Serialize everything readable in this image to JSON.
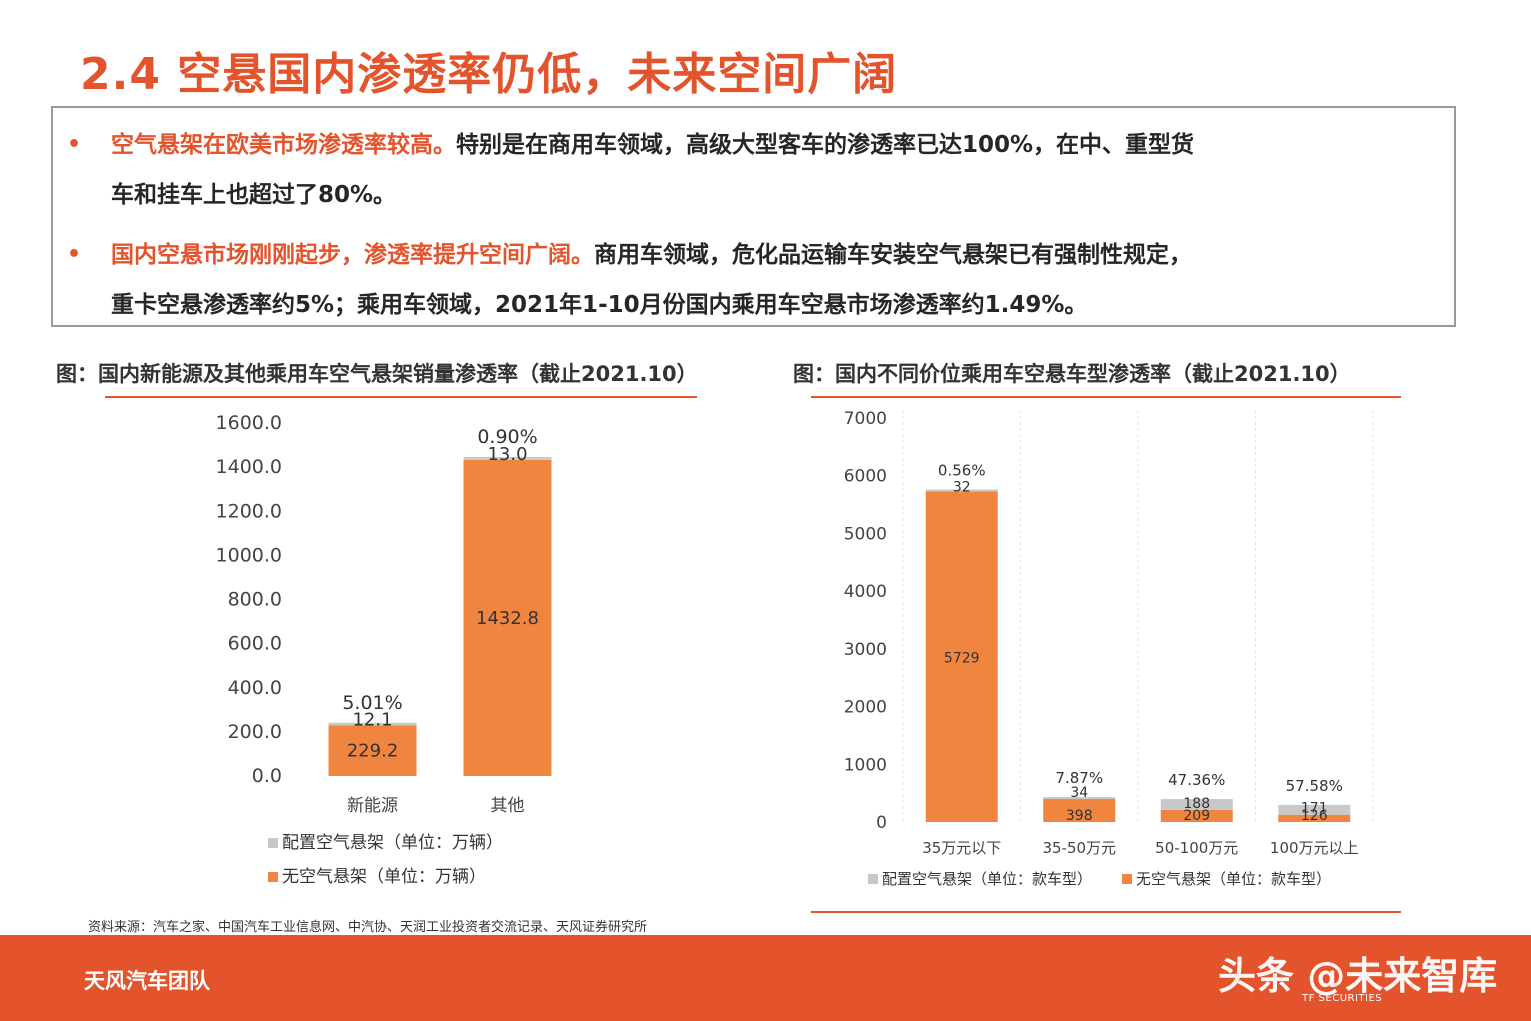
{
  "page": {
    "title": "2.4 空悬国内渗透率仍低，未来空间广阔",
    "bullets": [
      {
        "highlight": "空气悬架在欧美市场渗透率较高。",
        "line1": "特别是在商用车领域，高级大型客车的渗透率已达100%，在中、重型货",
        "line2": "车和挂车上也超过了80%。"
      },
      {
        "highlight": "国内空悬市场刚刚起步，渗透率提升空间广阔。",
        "line1": "商用车领域，危化品运输车安装空气悬架已有强制性规定，",
        "line2": "重卡空悬渗透率约5%；乘用车领域，2021年1-10月份国内乘用车空悬市场渗透率约1.49%。"
      }
    ],
    "source": "资料来源：汽车之家、中国汽车工业信息网、中汽协、天润工业投资者交流记录、天风证券研究所",
    "footer_team": "天风汽车团队",
    "watermark": "头条 @未来智库",
    "footer_logo": "TF SECURITIES"
  },
  "colors": {
    "accent": "#e3542c",
    "bar_orange": "#f08540",
    "bar_gray": "#c8c8c8"
  },
  "chart_data": [
    {
      "type": "bar",
      "stacked": true,
      "title": "图：国内新能源及其他乘用车空气悬架销量渗透率（截止2021.10）",
      "categories": [
        "新能源",
        "其他"
      ],
      "series": [
        {
          "name": "无空气悬架（单位：万辆）",
          "values": [
            229.2,
            1432.8
          ],
          "labels": [
            "229.2",
            "1432.8"
          ],
          "color": "#f08540"
        },
        {
          "name": "配置空气悬架（单位：万辆）",
          "values": [
            12.1,
            13.0
          ],
          "labels": [
            "12.1",
            "13.0"
          ],
          "color": "#c8c8c8"
        }
      ],
      "penetration_labels": [
        "5.01%",
        "0.90%"
      ],
      "ylim": [
        0,
        1600
      ],
      "yticks": [
        0,
        200,
        400,
        600,
        800,
        1000,
        1200,
        1400,
        1600
      ],
      "ytick_labels": [
        "0.0",
        "200.0",
        "400.0",
        "600.0",
        "800.0",
        "1000.0",
        "1200.0",
        "1400.0",
        "1600.0"
      ],
      "legend_position": "bottom-left",
      "grid": false
    },
    {
      "type": "bar",
      "stacked": true,
      "title": "图：国内不同价位乘用车空悬车型渗透率（截止2021.10）",
      "categories": [
        "35万元以下",
        "35-50万元",
        "50-100万元",
        "100万元以上"
      ],
      "series": [
        {
          "name": "无空气悬架（单位：款车型）",
          "values": [
            5729,
            398,
            209,
            126
          ],
          "labels": [
            "5729",
            "398",
            "209",
            "126"
          ],
          "color": "#f08540"
        },
        {
          "name": "配置空气悬架（单位：款车型）",
          "values": [
            32,
            34,
            188,
            171
          ],
          "labels": [
            "32",
            "34",
            "188",
            "171"
          ],
          "color": "#c8c8c8"
        }
      ],
      "penetration_labels": [
        "0.56%",
        "7.87%",
        "47.36%",
        "57.58%"
      ],
      "ylim": [
        0,
        7000
      ],
      "yticks": [
        0,
        1000,
        2000,
        3000,
        4000,
        5000,
        6000,
        7000
      ],
      "ytick_labels": [
        "0",
        "1000",
        "2000",
        "3000",
        "4000",
        "5000",
        "6000",
        "7000"
      ],
      "legend_position": "bottom",
      "grid": false
    }
  ]
}
